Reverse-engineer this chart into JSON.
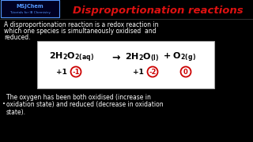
{
  "bg_color": "#000000",
  "title": "Disproportionation reactions",
  "title_color": "#dd1111",
  "logo_line1": "MSJChem",
  "logo_line2": "Tutorials for IB Chemistry",
  "logo_color": "#5599ff",
  "body_text_color": "#ffffff",
  "body_line1": "A disproportionation reaction is a redox reaction in",
  "body_line2": "which one species is simultaneously oxidised  and",
  "body_line3": "reduced.",
  "eq_box_bg": "#ffffff",
  "eq_box_border": "#cccccc",
  "circle_color": "#cc0000",
  "footer_line1": "The oxygen has been both oxidised (increase in",
  "footer_line2": "oxidation state) and reduced (decrease in oxidation",
  "footer_line3": "state).",
  "bullet": "•"
}
